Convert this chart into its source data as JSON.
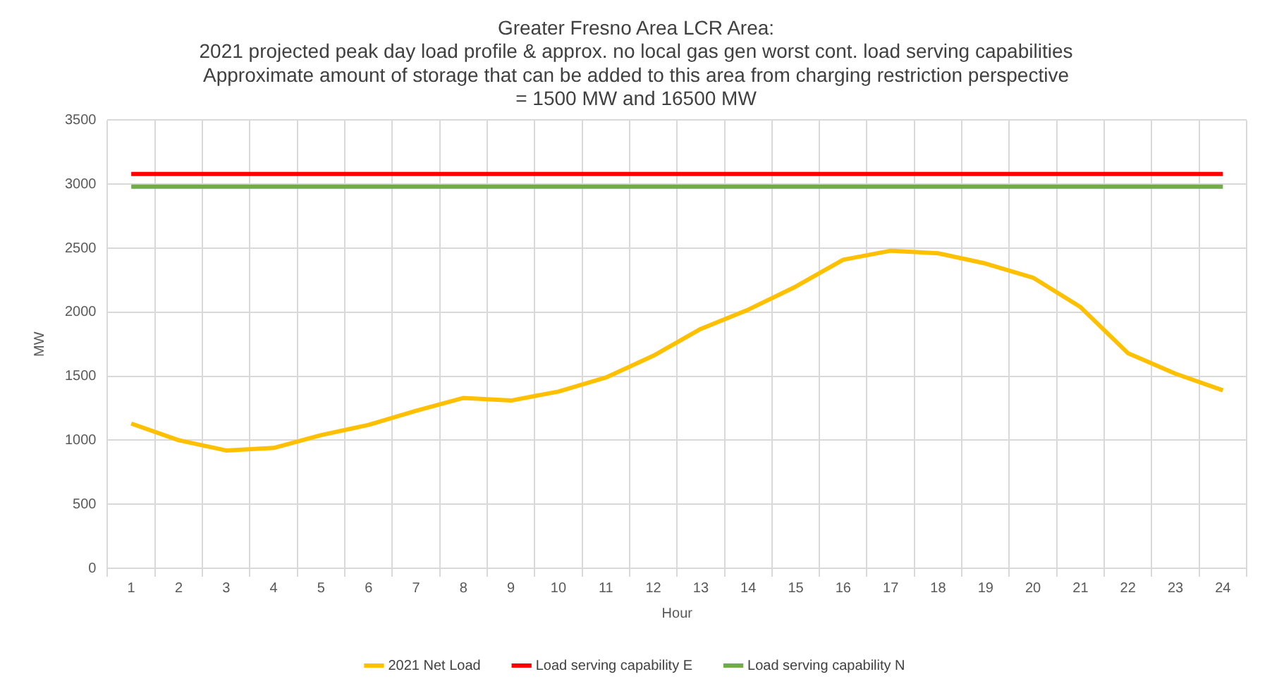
{
  "chart_data": {
    "type": "line",
    "title": "Greater Fresno Area LCR Area:\n2021 projected peak day load profile & approx. no local gas gen worst cont. load serving capabilities\nApproximate amount of storage that can be added to this area from charging restriction perspective\n= 1500 MW and 16500 MW",
    "xlabel": "Hour",
    "ylabel": "MW",
    "categories": [
      "1",
      "2",
      "3",
      "4",
      "5",
      "6",
      "7",
      "8",
      "9",
      "10",
      "11",
      "12",
      "13",
      "14",
      "15",
      "16",
      "17",
      "18",
      "19",
      "20",
      "21",
      "22",
      "23",
      "24"
    ],
    "series": [
      {
        "name": "2021 Net Load",
        "color": "#ffc000",
        "values": [
          1130,
          1000,
          920,
          940,
          1040,
          1120,
          1230,
          1330,
          1310,
          1380,
          1490,
          1660,
          1870,
          2020,
          2200,
          2410,
          2480,
          2460,
          2380,
          2270,
          2040,
          1680,
          1520,
          1390
        ]
      },
      {
        "name": "Load serving capability E",
        "color": "#ff0000",
        "values": [
          3080,
          3080,
          3080,
          3080,
          3080,
          3080,
          3080,
          3080,
          3080,
          3080,
          3080,
          3080,
          3080,
          3080,
          3080,
          3080,
          3080,
          3080,
          3080,
          3080,
          3080,
          3080,
          3080,
          3080
        ]
      },
      {
        "name": "Load serving capability N",
        "color": "#70ad47",
        "values": [
          2980,
          2980,
          2980,
          2980,
          2980,
          2980,
          2980,
          2980,
          2980,
          2980,
          2980,
          2980,
          2980,
          2980,
          2980,
          2980,
          2980,
          2980,
          2980,
          2980,
          2980,
          2980,
          2980,
          2980
        ]
      }
    ],
    "ylim": [
      0,
      3500
    ],
    "yticks": [
      0,
      500,
      1000,
      1500,
      2000,
      2500,
      3000,
      3500
    ],
    "grid": true,
    "legend": "bottom",
    "marker": "none",
    "line_style": "solid"
  }
}
